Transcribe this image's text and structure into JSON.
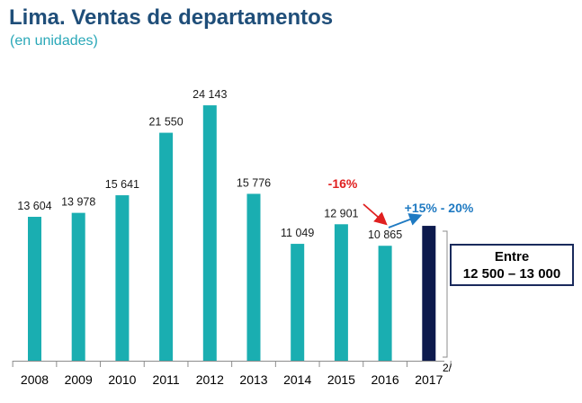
{
  "title": "Lima. Ventas de departamentos",
  "subtitle": "(en unidades)",
  "chart_data": {
    "type": "bar",
    "categories": [
      "2008",
      "2009",
      "2010",
      "2011",
      "2012",
      "2013",
      "2014",
      "2015",
      "2016",
      "2017"
    ],
    "values": [
      13604,
      13978,
      15641,
      21550,
      24143,
      15776,
      11049,
      12901,
      10865,
      12750
    ],
    "labels": [
      "13 604",
      "13 978",
      "15 641",
      "21 550",
      "24 143",
      "15 776",
      "11 049",
      "12 901",
      "10 865",
      ""
    ],
    "colors": {
      "bar": "#1aaeb1",
      "highlight": "#0d1a4d",
      "down": "#e02020",
      "up": "#1f7ac2",
      "title": "#1f4e79",
      "subtitle": "#2aa8b8"
    },
    "annotations": {
      "decline": "-16%",
      "growth": "+15% - 20%"
    },
    "range_box": {
      "line1": "Entre",
      "line2": "12 500 – 13 000"
    },
    "footnote": "2/",
    "ylim": [
      0,
      26000
    ]
  }
}
